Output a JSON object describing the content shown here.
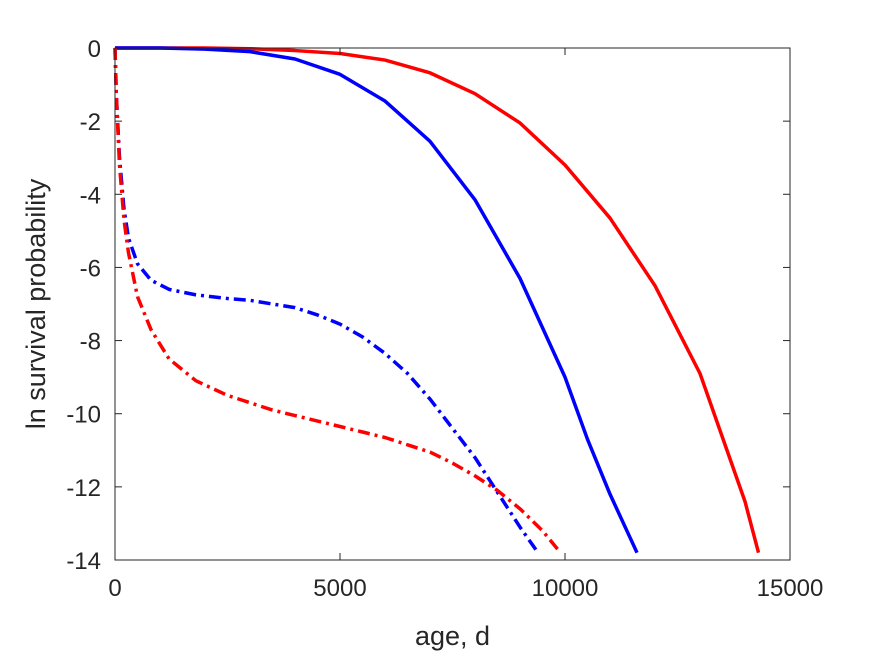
{
  "chart_data": {
    "type": "line",
    "title": "",
    "xlabel": "age, d",
    "ylabel": "ln survival probability",
    "xlim": [
      0,
      15000
    ],
    "ylim": [
      -14,
      0
    ],
    "xticks": [
      0,
      5000,
      10000,
      15000
    ],
    "xtick_labels": [
      "0",
      "5000",
      "10000",
      "15000"
    ],
    "yticks": [
      0,
      -2,
      -4,
      -6,
      -8,
      -10,
      -12,
      -14
    ],
    "ytick_labels": [
      "0",
      "-2",
      "-4",
      "-6",
      "-8",
      "-10",
      "-12",
      "-14"
    ],
    "grid": false,
    "legend": "none",
    "series": [
      {
        "color": "#ff0000",
        "style": "solid",
        "x": [
          0,
          1000,
          2000,
          3000,
          4000,
          5000,
          6000,
          7000,
          8000,
          9000,
          10000,
          11000,
          12000,
          13000,
          14000,
          14300
        ],
        "y": [
          0,
          0,
          0,
          -0.02,
          -0.07,
          -0.15,
          -0.33,
          -0.68,
          -1.25,
          -2.05,
          -3.2,
          -4.65,
          -6.5,
          -8.9,
          -12.4,
          -13.8
        ]
      },
      {
        "color": "#0000ff",
        "style": "solid",
        "x": [
          0,
          1000,
          2000,
          3000,
          4000,
          5000,
          6000,
          7000,
          8000,
          9000,
          10000,
          10500,
          11000,
          11600
        ],
        "y": [
          0,
          0,
          -0.03,
          -0.1,
          -0.3,
          -0.72,
          -1.45,
          -2.55,
          -4.15,
          -6.3,
          -9.0,
          -10.7,
          -12.2,
          -13.8
        ]
      },
      {
        "color": "#0000ff",
        "style": "dashdot",
        "x": [
          0,
          30,
          100,
          200,
          300,
          500,
          800,
          1200,
          1800,
          2500,
          3000,
          3500,
          4000,
          4500,
          5000,
          5500,
          6000,
          6500,
          7000,
          7500,
          8000,
          8500,
          9000,
          9400
        ],
        "y": [
          0,
          -1.3,
          -3.0,
          -4.4,
          -5.2,
          -5.9,
          -6.35,
          -6.6,
          -6.75,
          -6.85,
          -6.9,
          -7.0,
          -7.1,
          -7.3,
          -7.55,
          -7.9,
          -8.35,
          -8.9,
          -9.6,
          -10.4,
          -11.2,
          -12.15,
          -13.1,
          -13.8
        ]
      },
      {
        "color": "#ff0000",
        "style": "dashdot",
        "x": [
          0,
          30,
          100,
          200,
          300,
          500,
          800,
          1200,
          1800,
          2500,
          3000,
          3500,
          4000,
          4500,
          5000,
          5500,
          6000,
          6500,
          7000,
          7500,
          8000,
          8500,
          9000,
          9500,
          9900
        ],
        "y": [
          0,
          -1.3,
          -3.2,
          -4.7,
          -5.6,
          -6.8,
          -7.7,
          -8.5,
          -9.1,
          -9.5,
          -9.7,
          -9.9,
          -10.05,
          -10.2,
          -10.35,
          -10.5,
          -10.65,
          -10.85,
          -11.05,
          -11.35,
          -11.7,
          -12.1,
          -12.6,
          -13.2,
          -13.8
        ]
      }
    ]
  }
}
